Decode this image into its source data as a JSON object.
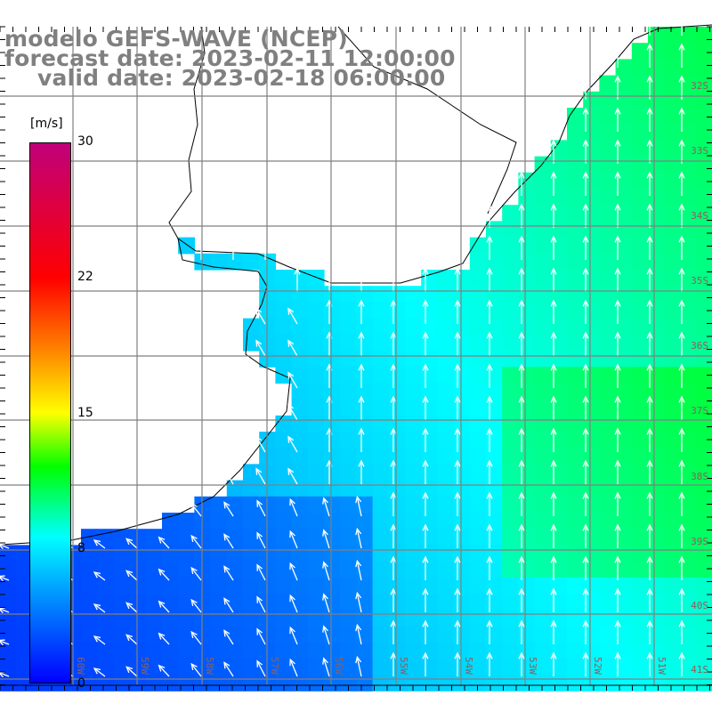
{
  "title": {
    "model": "modelo GEFS-WAVE (NCEP)",
    "forecast": "forecast date: 2023-02-11 12:00:00",
    "valid": "valid date: 2023-02-18 06:00:00"
  },
  "colorbar": {
    "unit": "[m/s]",
    "ticks": [
      "30",
      "22",
      "15",
      "8",
      "0"
    ],
    "range": [
      0,
      30
    ],
    "colors": [
      "#0000ff",
      "#0080ff",
      "#00ffff",
      "#00ff00",
      "#ffff00",
      "#ff8000",
      "#ff0000",
      "#c0007a"
    ]
  },
  "lat_labels": [
    "32S",
    "33S",
    "34S",
    "35S",
    "36S",
    "37S",
    "38S",
    "39S",
    "40S",
    "41S"
  ],
  "lon_labels": [
    "60W",
    "59W",
    "58W",
    "57W",
    "56W",
    "55W",
    "54W",
    "53W",
    "52W",
    "51W"
  ],
  "colors": {
    "grid": "#808080",
    "land": "#ffffff",
    "coast": "#000000",
    "arrow": "#ffffff",
    "title": "#808080"
  }
}
